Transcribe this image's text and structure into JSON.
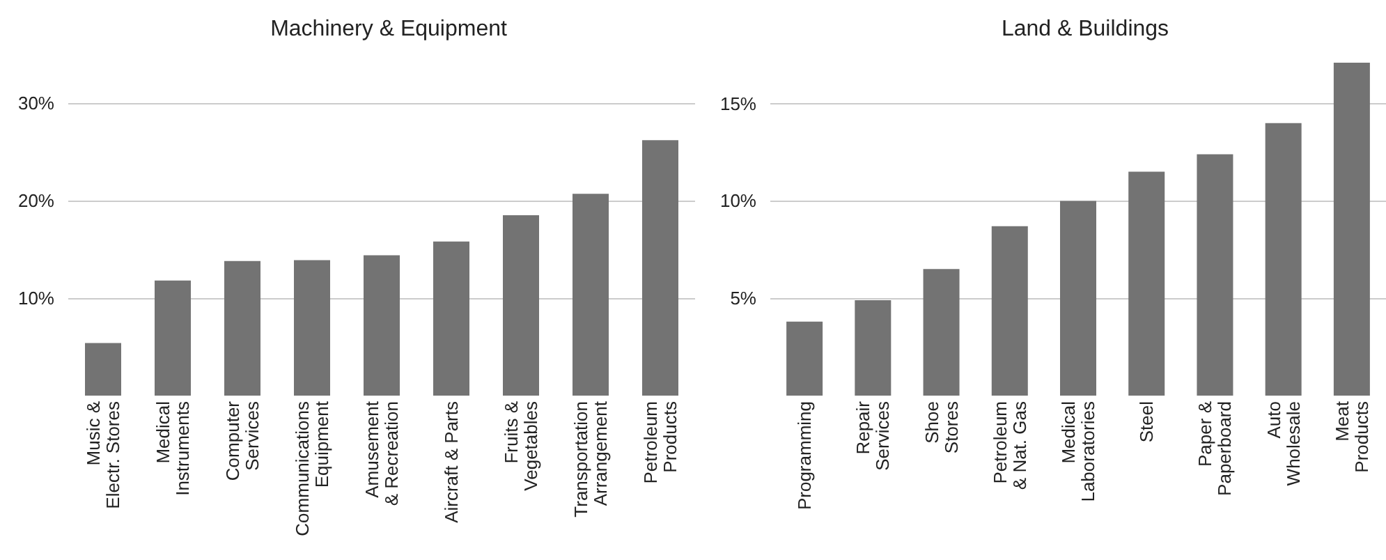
{
  "chart_data": [
    {
      "type": "bar",
      "title": "Machinery & Equipment",
      "categories": [
        "Music &\nElectr. Stores",
        "Medical\nInstruments",
        "Computer\nServices",
        "Communications\nEquipment",
        "Amusement\n& Recreation",
        "Aircraft & Parts",
        "Fruits &\nVegetables",
        "Transportation\nArrangement",
        "Petroleum\nProducts"
      ],
      "values": [
        5.4,
        11.8,
        13.8,
        13.9,
        14.4,
        15.8,
        18.5,
        20.7,
        26.2
      ],
      "color": "#737373",
      "ylim": [
        0,
        30
      ],
      "yticks": [
        {
          "value": 10,
          "label": "10%"
        },
        {
          "value": 20,
          "label": "20%"
        },
        {
          "value": 30,
          "label": "30%"
        }
      ],
      "grid": "y"
    },
    {
      "type": "bar",
      "title": "Land & Buildings",
      "categories": [
        "Programming",
        "Repair\nServices",
        "Shoe\nStores",
        "Petroleum\n& Nat. Gas",
        "Medical\nLaboratories",
        "Steel",
        "Paper &\nPaperboard",
        "Auto\nWholesale",
        "Meat\nProducts"
      ],
      "values": [
        3.8,
        4.9,
        6.5,
        8.7,
        10.0,
        11.5,
        12.4,
        14.0,
        17.1
      ],
      "color": "#737373",
      "ylim": [
        0,
        17.1
      ],
      "yticks": [
        {
          "value": 5,
          "label": "5%"
        },
        {
          "value": 10,
          "label": "10%"
        },
        {
          "value": 15,
          "label": "15%"
        }
      ],
      "grid": "y"
    }
  ]
}
